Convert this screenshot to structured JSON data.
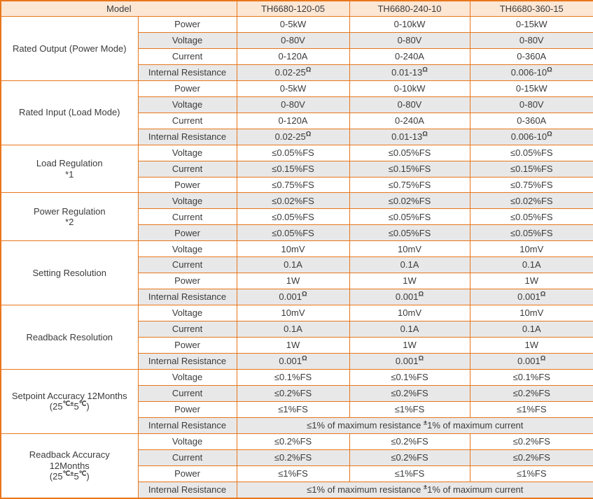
{
  "header": {
    "model_label": "Model",
    "models": [
      "TH6680-120-05",
      "TH6680-240-10",
      "TH6680-360-15"
    ]
  },
  "colors": {
    "border_orange": "#e8761a",
    "header_bg": "#fce6d4",
    "shaded_row_bg": "#e8e8e8",
    "text": "#3b3b3b"
  },
  "sections": [
    {
      "group": [
        [
          "Rated Output (Power Mode)"
        ]
      ],
      "rows": [
        {
          "param": "Power",
          "shaded": false,
          "values": [
            [
              "0-5kW"
            ],
            [
              "0-10kW"
            ],
            [
              "0-15kW"
            ]
          ]
        },
        {
          "param": "Voltage",
          "shaded": true,
          "values": [
            [
              "0-80V"
            ],
            [
              "0-80V"
            ],
            [
              "0-80V"
            ]
          ]
        },
        {
          "param": "Current",
          "shaded": false,
          "values": [
            [
              "0-120A"
            ],
            [
              "0-240A"
            ],
            [
              "0-360A"
            ]
          ]
        },
        {
          "param": "Internal Resistance",
          "shaded": true,
          "values": [
            [
              "0.02-25",
              {
                "sup": "Ω"
              }
            ],
            [
              "0.01-13",
              {
                "sup": "Ω"
              }
            ],
            [
              "0.006-10",
              {
                "sup": "Ω"
              }
            ]
          ]
        }
      ]
    },
    {
      "group": [
        [
          "Rated Input (Load Mode)"
        ]
      ],
      "rows": [
        {
          "param": "Power",
          "shaded": false,
          "values": [
            [
              "0-5kW"
            ],
            [
              "0-10kW"
            ],
            [
              "0-15kW"
            ]
          ]
        },
        {
          "param": "Voltage",
          "shaded": true,
          "values": [
            [
              "0-80V"
            ],
            [
              "0-80V"
            ],
            [
              "0-80V"
            ]
          ]
        },
        {
          "param": "Current",
          "shaded": false,
          "values": [
            [
              "0-120A"
            ],
            [
              "0-240A"
            ],
            [
              "0-360A"
            ]
          ]
        },
        {
          "param": "Internal Resistance",
          "shaded": true,
          "values": [
            [
              "0.02-25",
              {
                "sup": "Ω"
              }
            ],
            [
              "0.01-13",
              {
                "sup": "Ω"
              }
            ],
            [
              "0.006-10",
              {
                "sup": "Ω"
              }
            ]
          ]
        }
      ]
    },
    {
      "group": [
        [
          "Load Regulation"
        ],
        [
          "*1"
        ]
      ],
      "rows": [
        {
          "param": "Voltage",
          "shaded": false,
          "values": [
            [
              "≤0.05%FS"
            ],
            [
              "≤0.05%FS"
            ],
            [
              "≤0.05%FS"
            ]
          ]
        },
        {
          "param": "Current",
          "shaded": true,
          "values": [
            [
              "≤0.15%FS"
            ],
            [
              "≤0.15%FS"
            ],
            [
              "≤0.15%FS"
            ]
          ]
        },
        {
          "param": "Power",
          "shaded": false,
          "values": [
            [
              "≤0.75%FS"
            ],
            [
              "≤0.75%FS"
            ],
            [
              "≤0.75%FS"
            ]
          ]
        }
      ]
    },
    {
      "group": [
        [
          "Power Regulation"
        ],
        [
          "*2"
        ]
      ],
      "rows": [
        {
          "param": "Voltage",
          "shaded": true,
          "values": [
            [
              "≤0.02%FS"
            ],
            [
              "≤0.02%FS"
            ],
            [
              "≤0.02%FS"
            ]
          ]
        },
        {
          "param": "Current",
          "shaded": false,
          "values": [
            [
              "≤0.05%FS"
            ],
            [
              "≤0.05%FS"
            ],
            [
              "≤0.05%FS"
            ]
          ]
        },
        {
          "param": "Power",
          "shaded": true,
          "values": [
            [
              "≤0.05%FS"
            ],
            [
              "≤0.05%FS"
            ],
            [
              "≤0.05%FS"
            ]
          ]
        }
      ]
    },
    {
      "group": [
        [
          "Setting Resolution"
        ]
      ],
      "rows": [
        {
          "param": "Voltage",
          "shaded": false,
          "values": [
            [
              "10mV"
            ],
            [
              "10mV"
            ],
            [
              "10mV"
            ]
          ]
        },
        {
          "param": "Current",
          "shaded": true,
          "values": [
            [
              "0.1A"
            ],
            [
              "0.1A"
            ],
            [
              "0.1A"
            ]
          ]
        },
        {
          "param": "Power",
          "shaded": false,
          "values": [
            [
              "1W"
            ],
            [
              "1W"
            ],
            [
              "1W"
            ]
          ]
        },
        {
          "param": "Internal Resistance",
          "shaded": true,
          "values": [
            [
              "0.001",
              {
                "sup": "Ω"
              }
            ],
            [
              "0.001",
              {
                "sup": "Ω"
              }
            ],
            [
              "0.001",
              {
                "sup": "Ω"
              }
            ]
          ]
        }
      ]
    },
    {
      "group": [
        [
          "Readback Resolution"
        ]
      ],
      "rows": [
        {
          "param": "Voltage",
          "shaded": false,
          "values": [
            [
              "10mV"
            ],
            [
              "10mV"
            ],
            [
              "10mV"
            ]
          ]
        },
        {
          "param": "Current",
          "shaded": true,
          "values": [
            [
              "0.1A"
            ],
            [
              "0.1A"
            ],
            [
              "0.1A"
            ]
          ]
        },
        {
          "param": "Power",
          "shaded": false,
          "values": [
            [
              "1W"
            ],
            [
              "1W"
            ],
            [
              "1W"
            ]
          ]
        },
        {
          "param": "Internal Resistance",
          "shaded": true,
          "values": [
            [
              "0.001",
              {
                "sup": "Ω"
              }
            ],
            [
              "0.001",
              {
                "sup": "Ω"
              }
            ],
            [
              "0.001",
              {
                "sup": "Ω"
              }
            ]
          ]
        }
      ]
    },
    {
      "group": [
        [
          "Setpoint Accuracy 12Months"
        ],
        [
          "(25",
          {
            "sup": "℃±"
          },
          "5",
          {
            "sup": "℃"
          },
          ")"
        ]
      ],
      "rows": [
        {
          "param": "Voltage",
          "shaded": false,
          "values": [
            [
              "≤0.1%FS"
            ],
            [
              "≤0.1%FS"
            ],
            [
              "≤0.1%FS"
            ]
          ]
        },
        {
          "param": "Current",
          "shaded": true,
          "values": [
            [
              "≤0.2%FS"
            ],
            [
              "≤0.2%FS"
            ],
            [
              "≤0.2%FS"
            ]
          ]
        },
        {
          "param": "Power",
          "shaded": false,
          "values": [
            [
              "≤1%FS"
            ],
            [
              "≤1%FS"
            ],
            [
              "≤1%FS"
            ]
          ]
        },
        {
          "param": "Internal Resistance",
          "shaded": true,
          "span": [
            "≤1% of maximum resistance ",
            {
              "sup": "±"
            },
            "1% of maximum current"
          ]
        }
      ]
    },
    {
      "group": [
        [
          "Readback Accuracy"
        ],
        [
          "12Months"
        ],
        [
          "(25",
          {
            "sup": "℃±"
          },
          "5",
          {
            "sup": "℃"
          },
          ")"
        ]
      ],
      "rows": [
        {
          "param": "Voltage",
          "shaded": false,
          "values": [
            [
              "≤0.2%FS"
            ],
            [
              "≤0.2%FS"
            ],
            [
              "≤0.2%FS"
            ]
          ]
        },
        {
          "param": "Current",
          "shaded": true,
          "values": [
            [
              "≤0.2%FS"
            ],
            [
              "≤0.2%FS"
            ],
            [
              "≤0.2%FS"
            ]
          ]
        },
        {
          "param": "Power",
          "shaded": false,
          "values": [
            [
              "≤1%FS"
            ],
            [
              "≤1%FS"
            ],
            [
              "≤1%FS"
            ]
          ]
        },
        {
          "param": "Internal Resistance",
          "shaded": true,
          "span": [
            "≤1% of maximum resistance ",
            {
              "sup": "±"
            },
            "1% of maximum current"
          ]
        }
      ]
    }
  ]
}
